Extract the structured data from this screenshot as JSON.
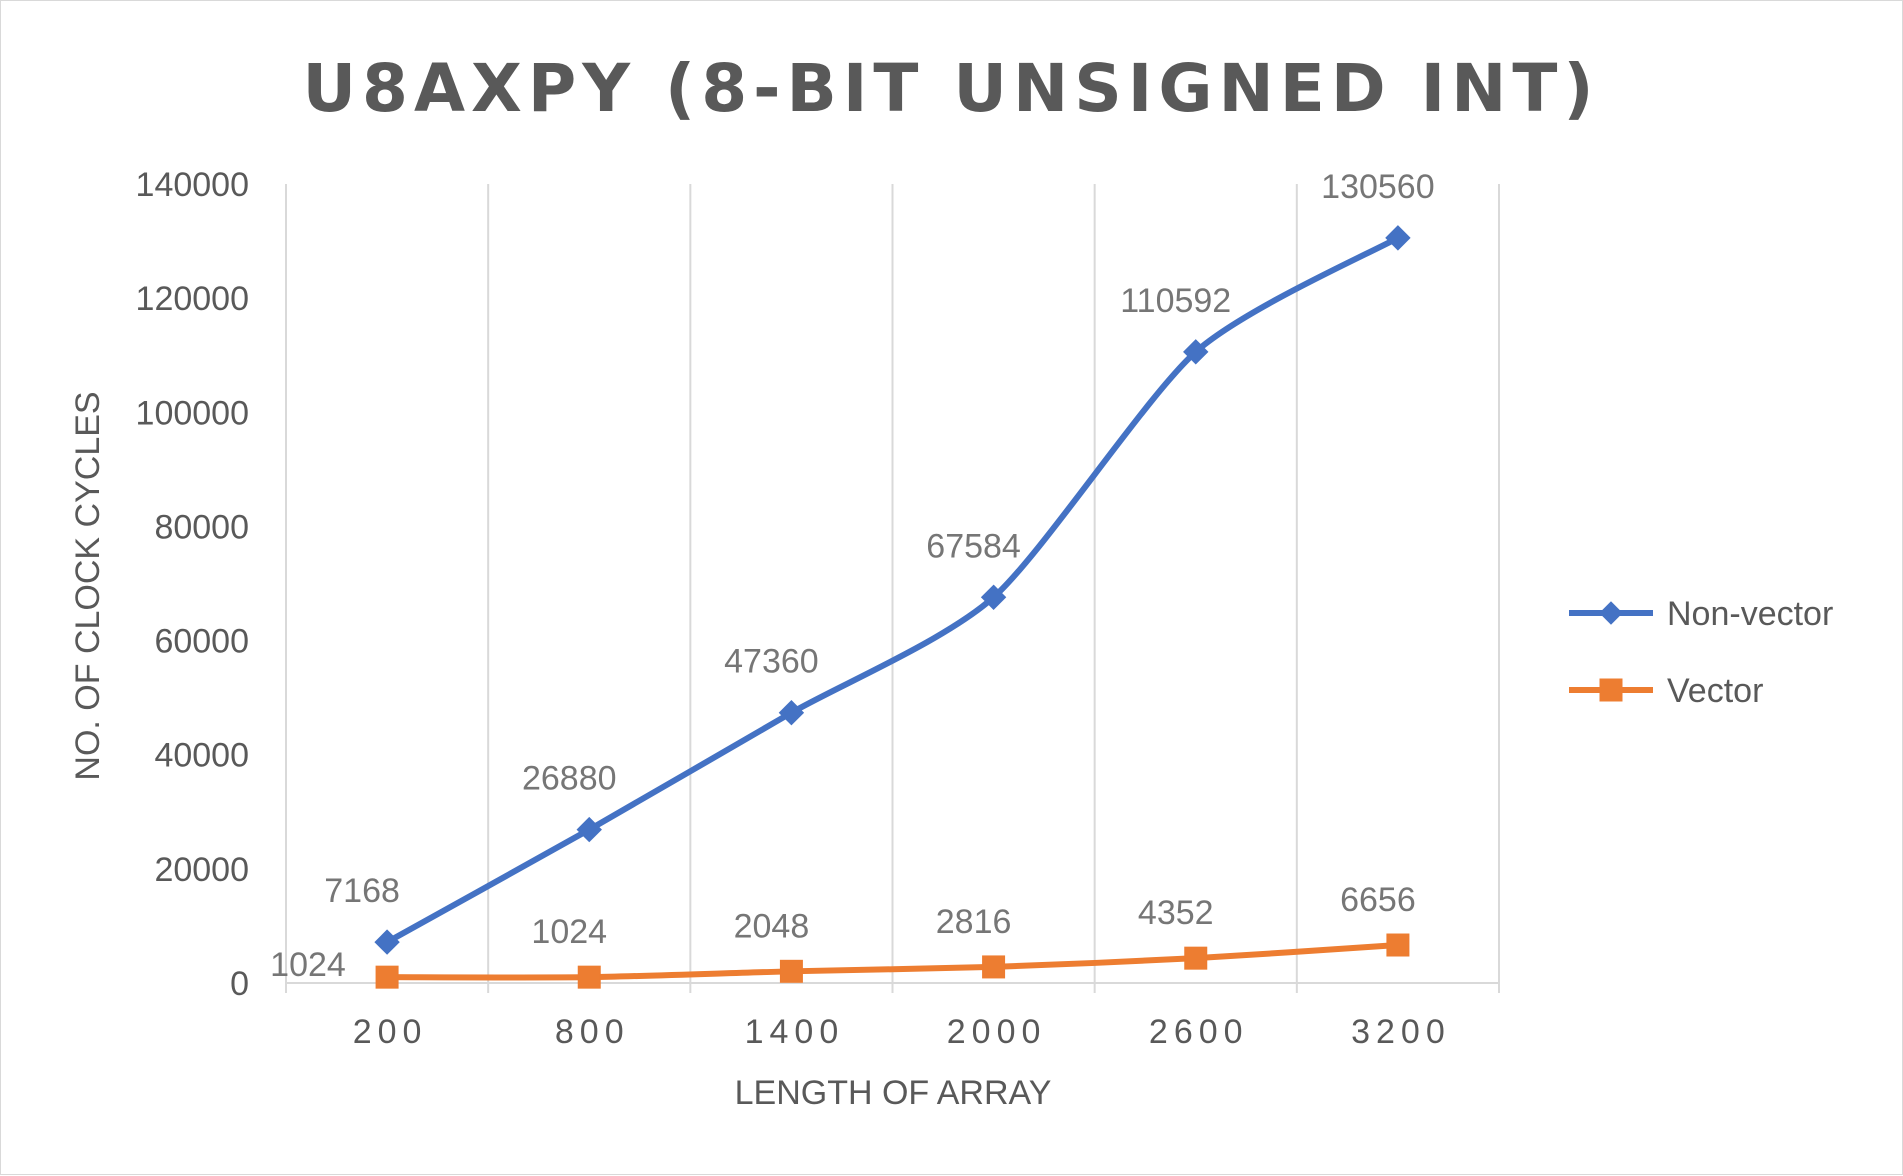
{
  "chart_data": {
    "type": "line",
    "title": "U8AXPY (8-BIT UNSIGNED INT)",
    "xlabel": "LENGTH OF ARRAY",
    "ylabel": "NO. OF CLOCK CYCLES",
    "categories": [
      "200",
      "800",
      "1400",
      "2000",
      "2600",
      "3200"
    ],
    "ylim": [
      0,
      140000
    ],
    "yticks": [
      "0",
      "20000",
      "40000",
      "60000",
      "80000",
      "100000",
      "120000",
      "140000"
    ],
    "grid": "vertical",
    "legend_position": "right",
    "series": [
      {
        "name": "Non-vector",
        "color": "#4472c4",
        "marker": "diamond",
        "values": [
          7168,
          26880,
          47360,
          67584,
          110592,
          130560
        ]
      },
      {
        "name": "Vector",
        "color": "#ed7d31",
        "marker": "square",
        "values": [
          1024,
          1024,
          2048,
          2816,
          4352,
          6656
        ]
      }
    ]
  }
}
